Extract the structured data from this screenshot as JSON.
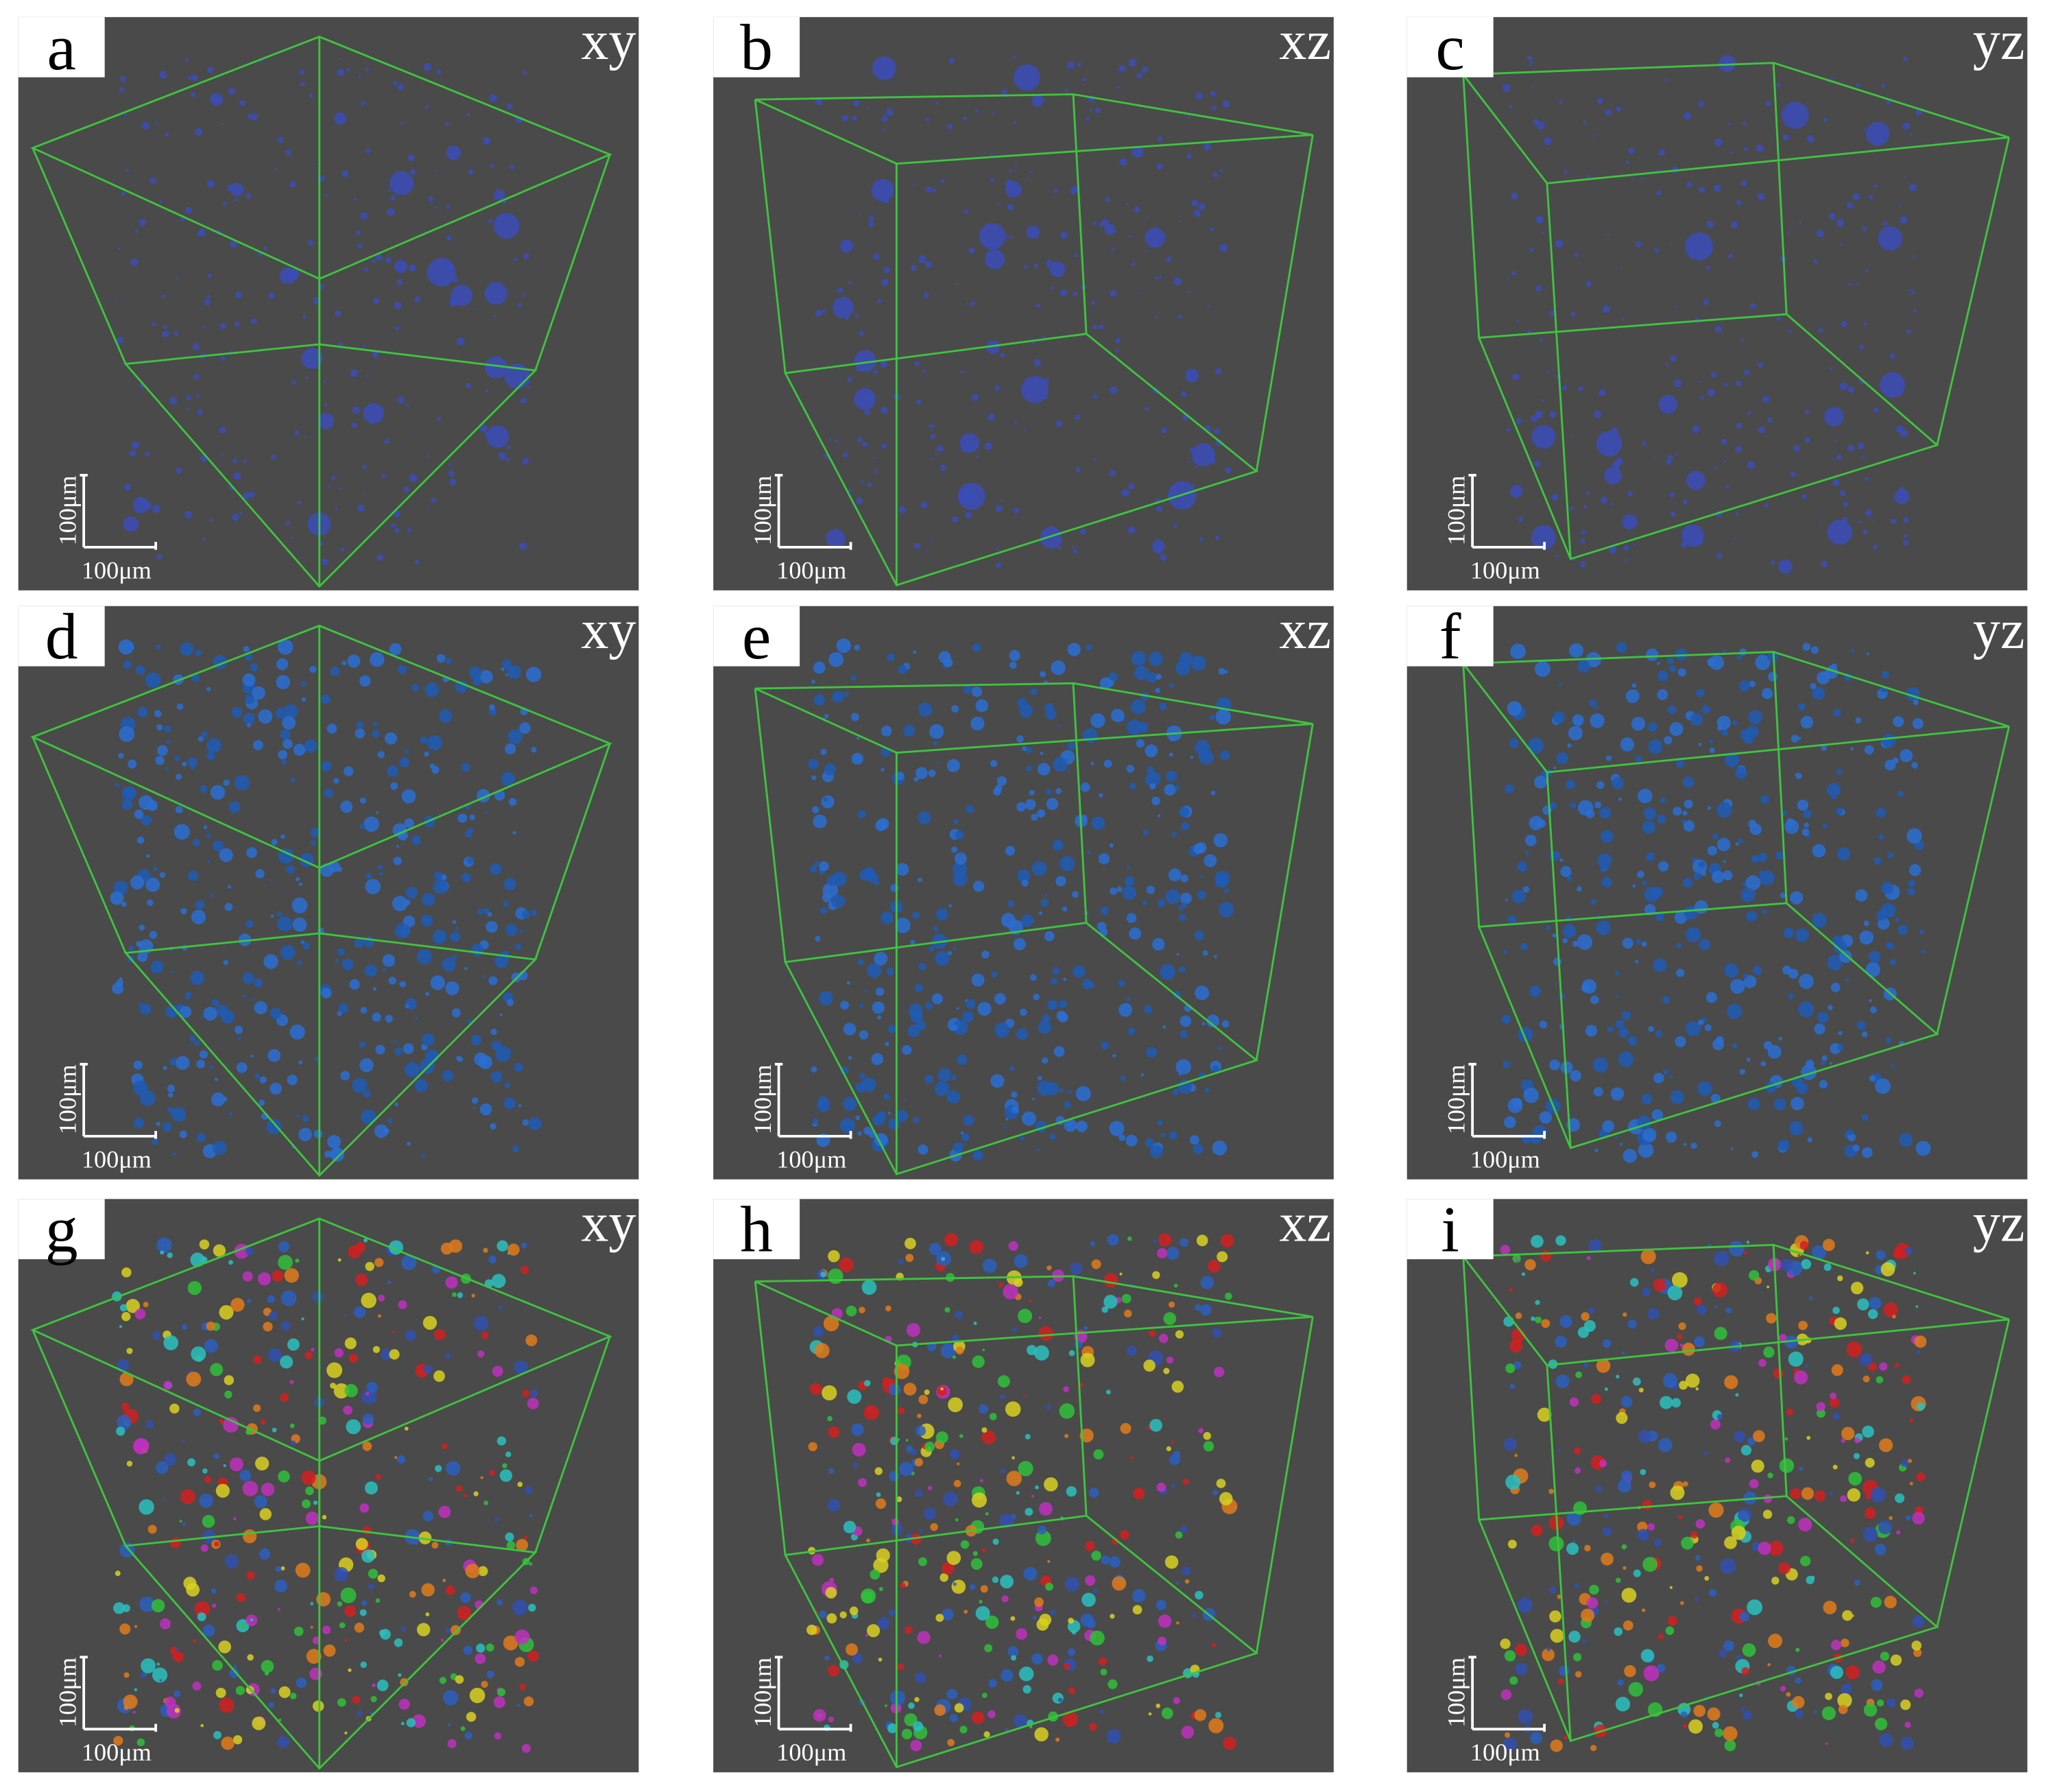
{
  "panels": [
    {
      "label": "a",
      "view": "xy",
      "scale_vertical": "100μm",
      "scale_horizontal": "100μm"
    },
    {
      "label": "b",
      "view": "xz",
      "scale_vertical": "100μm",
      "scale_horizontal": "100μm"
    },
    {
      "label": "c",
      "view": "yz",
      "scale_vertical": "100μm",
      "scale_horizontal": "100μm"
    },
    {
      "label": "d",
      "view": "xy",
      "scale_vertical": "100μm",
      "scale_horizontal": "100μm"
    },
    {
      "label": "e",
      "view": "xz",
      "scale_vertical": "100μm",
      "scale_horizontal": "100μm"
    },
    {
      "label": "f",
      "view": "yz",
      "scale_vertical": "100μm",
      "scale_horizontal": "100μm"
    },
    {
      "label": "g",
      "view": "xy",
      "scale_vertical": "100μm",
      "scale_horizontal": "100μm"
    },
    {
      "label": "h",
      "view": "xz",
      "scale_vertical": "100μm",
      "scale_horizontal": "100μm"
    },
    {
      "label": "i",
      "view": "yz",
      "scale_vertical": "100μm",
      "scale_horizontal": "100μm"
    }
  ]
}
